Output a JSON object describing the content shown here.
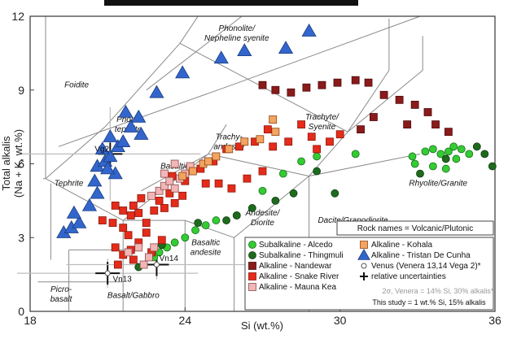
{
  "chart_data": {
    "type": "scatter",
    "title": "",
    "xlabel": "Si (wt.%)",
    "ylabel_lines": [
      "Total alkalis",
      "(Na + K, wt.%)"
    ],
    "xlim": [
      18,
      36
    ],
    "ylim": [
      0,
      12
    ],
    "x_ticks": [
      18,
      24,
      30,
      36
    ],
    "y_ticks": [
      0,
      3,
      6,
      9,
      12
    ],
    "fields": [
      {
        "lines": [
          "Foidite"
        ],
        "x": 19.8,
        "y": 9.1
      },
      {
        "lines": [
          "Phonolite/",
          "Nepheline syenite"
        ],
        "x": 26.0,
        "y": 11.4
      },
      {
        "lines": [
          "Phono",
          "tephrite"
        ],
        "x": 21.8,
        "y": 7.7
      },
      {
        "lines": [
          "Trachy-",
          "andesite"
        ],
        "x": 25.7,
        "y": 7.0
      },
      {
        "lines": [
          "Trachyte/",
          "Syenite"
        ],
        "x": 29.3,
        "y": 7.8
      },
      {
        "lines": [
          "Tephrite"
        ],
        "x": 19.5,
        "y": 5.1
      },
      {
        "lines": [
          "Basaltic",
          "trac"
        ],
        "x": 23.6,
        "y": 5.8
      },
      {
        "lines": [
          "Andesite/",
          "Diorite"
        ],
        "x": 27.0,
        "y": 3.9
      },
      {
        "lines": [
          "Dacite/Granodiorite"
        ],
        "x": 30.5,
        "y": 3.6
      },
      {
        "lines": [
          "Rhyolite/Granite"
        ],
        "x": 33.8,
        "y": 5.1
      },
      {
        "lines": [
          "Basaltic",
          "andesite"
        ],
        "x": 24.8,
        "y": 2.7
      },
      {
        "lines": [
          "Picro-",
          "basalt"
        ],
        "x": 19.2,
        "y": 0.8
      },
      {
        "lines": [
          "Basalt/Gabbro"
        ],
        "x": 22.0,
        "y": 0.55
      }
    ],
    "rock_names_note": "Rock names = Volcanic/Plutonic",
    "annotations": [
      {
        "text": "Vg2",
        "x": 20.5,
        "y": 6.5
      },
      {
        "text": "Vn13",
        "x": 21.2,
        "y": 1.2
      },
      {
        "text": "Vn14",
        "x": 23.0,
        "y": 2.05
      }
    ],
    "series": [
      {
        "name": "Subalkaline - Alcedo",
        "marker": "circle",
        "color": "#33cc33",
        "stroke": "#1a6e1a",
        "points": [
          [
            22.8,
            2.2
          ],
          [
            23.0,
            2.4
          ],
          [
            23.3,
            2.6
          ],
          [
            23.6,
            2.8
          ],
          [
            24.0,
            3.0
          ],
          [
            24.4,
            3.3
          ],
          [
            24.8,
            3.5
          ],
          [
            25.2,
            3.7
          ],
          [
            26.0,
            3.9
          ],
          [
            27.0,
            4.9
          ],
          [
            27.8,
            5.6
          ],
          [
            28.5,
            6.1
          ],
          [
            29.1,
            6.3
          ],
          [
            30.6,
            6.4
          ],
          [
            32.8,
            6.3
          ],
          [
            33.3,
            6.5
          ],
          [
            33.6,
            6.6
          ],
          [
            33.9,
            6.4
          ],
          [
            34.2,
            6.5
          ],
          [
            34.4,
            6.7
          ],
          [
            34.7,
            6.6
          ],
          [
            35.0,
            6.4
          ],
          [
            32.9,
            6.0
          ],
          [
            33.6,
            5.9
          ],
          [
            34.1,
            5.8
          ],
          [
            34.5,
            6.2
          ]
        ]
      },
      {
        "name": "Subalkaline - Thingmuli",
        "marker": "circle",
        "color": "#1e6b1e",
        "stroke": "#0d3d0d",
        "points": [
          [
            22.2,
            1.8
          ],
          [
            23.1,
            2.7
          ],
          [
            24.5,
            3.6
          ],
          [
            25.6,
            3.7
          ],
          [
            26.0,
            3.9
          ],
          [
            26.6,
            4.2
          ],
          [
            27.5,
            4.5
          ],
          [
            28.2,
            4.8
          ],
          [
            29.1,
            5.7
          ],
          [
            29.8,
            4.8
          ],
          [
            33.1,
            5.6
          ],
          [
            34.1,
            6.2
          ],
          [
            35.3,
            6.7
          ],
          [
            35.6,
            6.4
          ],
          [
            35.9,
            5.9
          ]
        ]
      },
      {
        "name": "Alkaline - Nandewar",
        "marker": "square",
        "color": "#8b1a1a",
        "stroke": "#4d0d0d",
        "points": [
          [
            27.0,
            9.2
          ],
          [
            27.5,
            9.0
          ],
          [
            28.1,
            8.9
          ],
          [
            28.7,
            9.1
          ],
          [
            29.3,
            9.2
          ],
          [
            29.9,
            9.3
          ],
          [
            30.6,
            9.4
          ],
          [
            31.1,
            9.3
          ],
          [
            31.7,
            8.8
          ],
          [
            32.3,
            8.6
          ],
          [
            32.9,
            8.4
          ],
          [
            33.4,
            8.1
          ],
          [
            33.7,
            7.6
          ],
          [
            34.2,
            7.3
          ],
          [
            32.6,
            7.6
          ],
          [
            31.3,
            7.9
          ],
          [
            30.8,
            7.4
          ]
        ]
      },
      {
        "name": "Alkaline - Snake River",
        "marker": "square",
        "color": "#e52b1a",
        "stroke": "#8b1a0d",
        "points": [
          [
            20.8,
            3.7
          ],
          [
            21.2,
            3.6
          ],
          [
            21.3,
            4.3
          ],
          [
            21.6,
            4.1
          ],
          [
            22.0,
            4.3
          ],
          [
            22.3,
            4.6
          ],
          [
            21.6,
            3.4
          ],
          [
            21.8,
            3.1
          ],
          [
            21.3,
            2.6
          ],
          [
            21.6,
            2.3
          ],
          [
            21.9,
            2.5
          ],
          [
            22.2,
            2.8
          ],
          [
            22.5,
            3.2
          ],
          [
            22.2,
            4.0
          ],
          [
            22.8,
            4.1
          ],
          [
            23.0,
            4.5
          ],
          [
            23.2,
            4.2
          ],
          [
            23.4,
            4.8
          ],
          [
            23.6,
            4.4
          ],
          [
            23.9,
            4.7
          ],
          [
            23.5,
            5.5
          ],
          [
            24.0,
            5.3
          ],
          [
            24.6,
            5.8
          ],
          [
            25.1,
            6.1
          ],
          [
            25.6,
            6.6
          ],
          [
            26.1,
            6.7
          ],
          [
            26.7,
            6.9
          ],
          [
            27.2,
            7.4
          ],
          [
            27.4,
            6.7
          ],
          [
            27.0,
            5.7
          ],
          [
            26.4,
            5.4
          ],
          [
            25.8,
            5.0
          ],
          [
            25.3,
            5.2
          ],
          [
            24.8,
            5.2
          ],
          [
            28.0,
            6.9
          ],
          [
            28.5,
            7.6
          ],
          [
            28.9,
            7.1
          ],
          [
            29.6,
            6.9
          ],
          [
            30.0,
            7.2
          ],
          [
            29.1,
            6.6
          ],
          [
            21.4,
            1.9
          ],
          [
            22.0,
            2.1
          ],
          [
            22.7,
            2.4
          ],
          [
            23.1,
            2.9
          ],
          [
            22.5,
            3.6
          ],
          [
            21.9,
            3.9
          ]
        ]
      },
      {
        "name": "Alkaline - Mauna Kea",
        "marker": "square",
        "color": "#f2b6b6",
        "stroke": "#8b4c4c",
        "points": [
          [
            22.4,
            1.9
          ],
          [
            22.6,
            2.2
          ],
          [
            22.8,
            2.6
          ],
          [
            23.0,
            4.9
          ],
          [
            23.2,
            5.1
          ],
          [
            23.4,
            5.3
          ],
          [
            23.6,
            5.0
          ],
          [
            23.8,
            5.4
          ],
          [
            24.0,
            5.6
          ],
          [
            24.2,
            5.9
          ],
          [
            22.7,
            4.7
          ],
          [
            23.2,
            5.6
          ],
          [
            23.6,
            6.0
          ],
          [
            22.2,
            2.6
          ],
          [
            21.8,
            2.4
          ]
        ]
      },
      {
        "name": "Alkaline - Kohala",
        "marker": "square",
        "color": "#f4a460",
        "stroke": "#8b4513",
        "points": [
          [
            23.9,
            5.5
          ],
          [
            24.3,
            5.7
          ],
          [
            24.7,
            6.0
          ],
          [
            25.2,
            6.3
          ],
          [
            25.7,
            6.6
          ],
          [
            26.3,
            6.9
          ],
          [
            26.9,
            7.0
          ],
          [
            27.5,
            7.3
          ],
          [
            27.4,
            7.8
          ],
          [
            24.9,
            6.1
          ]
        ]
      },
      {
        "name": "Alkaline - Tristan De Cunha",
        "marker": "triangle",
        "color": "#3366cc",
        "stroke": "#1a3d80",
        "points": [
          [
            19.3,
            3.2
          ],
          [
            19.6,
            3.4
          ],
          [
            19.9,
            3.6
          ],
          [
            19.7,
            4.0
          ],
          [
            20.3,
            4.3
          ],
          [
            20.5,
            5.3
          ],
          [
            20.6,
            5.9
          ],
          [
            20.9,
            6.1
          ],
          [
            21.1,
            6.3
          ],
          [
            20.8,
            6.6
          ],
          [
            21.4,
            6.7
          ],
          [
            21.6,
            6.9
          ],
          [
            21.1,
            7.1
          ],
          [
            21.9,
            7.5
          ],
          [
            22.2,
            7.9
          ],
          [
            20.6,
            4.8
          ],
          [
            21.3,
            5.6
          ],
          [
            21.0,
            5.8
          ],
          [
            21.7,
            8.1
          ],
          [
            22.9,
            8.9
          ],
          [
            23.9,
            9.7
          ],
          [
            25.4,
            10.3
          ],
          [
            26.3,
            10.6
          ],
          [
            27.9,
            10.7
          ],
          [
            28.8,
            11.4
          ],
          [
            22.3,
            7.2
          ]
        ]
      }
    ],
    "venus_points": [
      {
        "label": "Vg2",
        "x": 21.1,
        "y": 6.4,
        "ex": 3.5,
        "ey": 1.9
      },
      {
        "label": "Vn13",
        "x": 21.0,
        "y": 1.55,
        "ex": 3.5,
        "ey": 0.6
      },
      {
        "label": "Vn14",
        "x": 22.9,
        "y": 1.9,
        "ex": 3.5,
        "ey": 0.6
      }
    ],
    "legend": {
      "left": [
        "Subalkaline - Alcedo",
        "Subalkaline - Thingmuli",
        "Alkaline - Nandewar",
        "Alkaline - Snake River",
        "Alkaline - Mauna Kea"
      ],
      "right": [
        "Alkaline - Kohala",
        "Alkaline - Tristan De Cunha",
        "Venus (Venera 13,14 Vega 2)*",
        "relative uncertainties"
      ],
      "note1": "2σ, Venera = 14% Si, 30% alkalis*",
      "note2": "This study = 1 wt.% Si, 15% alkalis"
    }
  }
}
